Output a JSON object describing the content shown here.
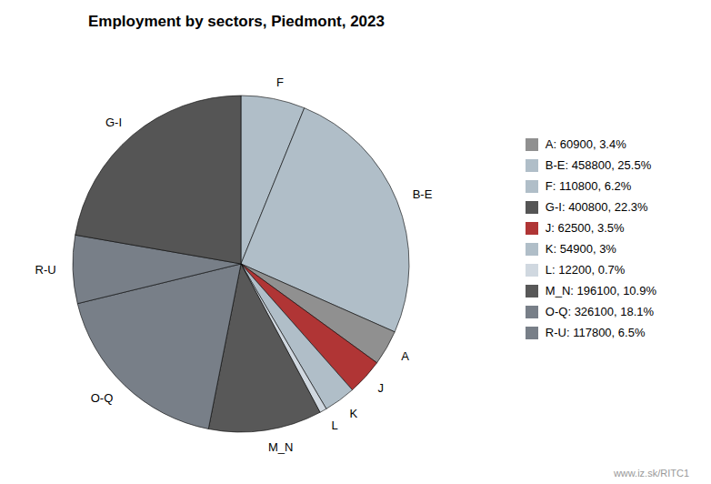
{
  "chart_data": {
    "type": "pie",
    "title": "Employment by sectors, Piedmont, 2023",
    "categories": [
      "F",
      "B-E",
      "A",
      "J",
      "K",
      "L",
      "M_N",
      "O-Q",
      "R-U",
      "G-I"
    ],
    "values": [
      110800,
      458800,
      60900,
      62500,
      54900,
      12200,
      196100,
      326100,
      117800,
      400800
    ],
    "colors": [
      "#b0bec8",
      "#b0bec8",
      "#909090",
      "#b03535",
      "#b0bec8",
      "#d0d8e0",
      "#585858",
      "#787f88",
      "#787f88",
      "#555555"
    ],
    "legend": "right",
    "legend_labels": [
      "A: 60900, 3.4%",
      "B-E: 458800, 25.5%",
      "F: 110800, 6.2%",
      "G-I: 400800, 22.3%",
      "J: 62500, 3.5%",
      "K: 54900, 3%",
      "L: 12200, 0.7%",
      "M_N: 196100, 10.9%",
      "O-Q: 326100, 18.1%",
      "R-U: 117800, 6.5%"
    ],
    "legend_colors": [
      "#909090",
      "#b0bec8",
      "#b0bec8",
      "#555555",
      "#b03535",
      "#b0bec8",
      "#d0d8e0",
      "#585858",
      "#787f88",
      "#787f88"
    ],
    "annotations": [
      "www.iz.sk/RITC1"
    ]
  }
}
